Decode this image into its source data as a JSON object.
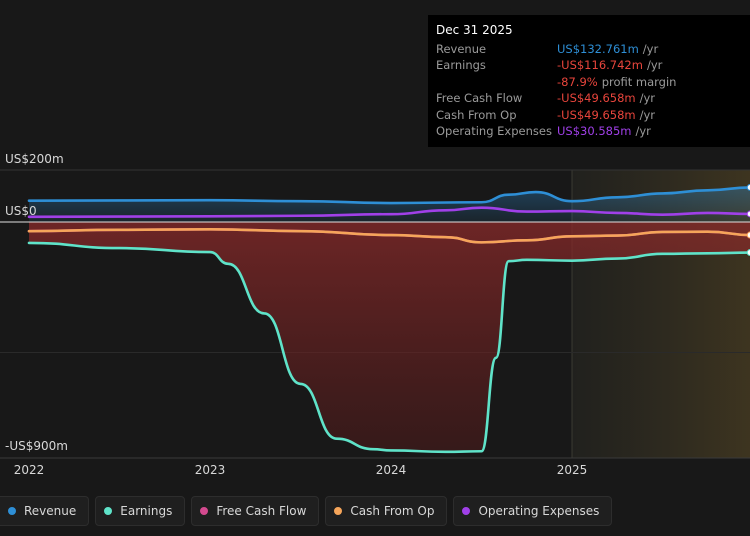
{
  "chart_data": {
    "type": "line",
    "y_axis_labels": {
      "top": "US$200m",
      "zero": "US$0",
      "bottom": "-US$900m"
    },
    "ylim": [
      -900,
      200
    ],
    "x_ticks": [
      "2022",
      "2023",
      "2024",
      "2025"
    ],
    "forecast_from": 2025.0,
    "series": [
      {
        "name": "Revenue",
        "color": "#2e8fd6",
        "fill": true,
        "x": [
          2022.0,
          2022.5,
          2023.0,
          2023.5,
          2024.0,
          2024.5,
          2024.65,
          2024.8,
          2025.0,
          2025.25,
          2025.5,
          2025.75,
          2025.99
        ],
        "y": [
          82,
          83,
          84,
          80,
          73,
          76,
          105,
          115,
          80,
          95,
          110,
          122,
          133
        ]
      },
      {
        "name": "Earnings",
        "color": "#5fe3c9",
        "fill": true,
        "x": [
          2022.0,
          2022.5,
          2023.0,
          2023.1,
          2023.3,
          2023.5,
          2023.7,
          2023.9,
          2024.0,
          2024.3,
          2024.5,
          2024.58,
          2024.65,
          2024.75,
          2025.0,
          2025.25,
          2025.5,
          2025.75,
          2025.99
        ],
        "y": [
          -80,
          -100,
          -115,
          -160,
          -350,
          -620,
          -830,
          -870,
          -875,
          -880,
          -878,
          -520,
          -150,
          -145,
          -148,
          -140,
          -122,
          -120,
          -117
        ]
      },
      {
        "name": "Free Cash Flow",
        "color": "#d44a8f",
        "fill": false,
        "x": [
          2022.0,
          2022.5,
          2023.0,
          2023.5,
          2024.0,
          2024.3,
          2024.5,
          2024.75,
          2025.0,
          2025.25,
          2025.5,
          2025.75,
          2025.99
        ],
        "y": [
          -35,
          -30,
          -28,
          -35,
          -50,
          -58,
          -78,
          -70,
          -55,
          -52,
          -38,
          -37,
          -50
        ]
      },
      {
        "name": "Cash From Op",
        "color": "#f5a55a",
        "fill": false,
        "x": [
          2022.0,
          2022.5,
          2023.0,
          2023.5,
          2024.0,
          2024.3,
          2024.5,
          2024.75,
          2025.0,
          2025.25,
          2025.5,
          2025.75,
          2025.99
        ],
        "y": [
          -35,
          -30,
          -28,
          -35,
          -50,
          -58,
          -78,
          -70,
          -55,
          -52,
          -38,
          -37,
          -50
        ]
      },
      {
        "name": "Operating Expenses",
        "color": "#a040e8",
        "fill": false,
        "x": [
          2022.0,
          2022.5,
          2023.0,
          2023.5,
          2024.0,
          2024.3,
          2024.5,
          2024.75,
          2025.0,
          2025.25,
          2025.5,
          2025.75,
          2025.99
        ],
        "y": [
          20,
          21,
          22,
          24,
          30,
          45,
          55,
          40,
          42,
          35,
          28,
          35,
          31
        ]
      }
    ]
  },
  "tooltip": {
    "date": "Dec 31 2025",
    "rows": [
      {
        "label": "Revenue",
        "value": "US$132.761m",
        "unit": "/yr",
        "color": "#2e8fd6"
      },
      {
        "label": "Earnings",
        "value": "-US$116.742m",
        "unit": "/yr",
        "color": "#e8453c"
      },
      {
        "label": "",
        "value": "-87.9%",
        "unit": "profit margin",
        "color": "#e8453c"
      },
      {
        "label": "Free Cash Flow",
        "value": "-US$49.658m",
        "unit": "/yr",
        "color": "#e8453c"
      },
      {
        "label": "Cash From Op",
        "value": "-US$49.658m",
        "unit": "/yr",
        "color": "#e8453c"
      },
      {
        "label": "Operating Expenses",
        "value": "US$30.585m",
        "unit": "/yr",
        "color": "#a040e8"
      }
    ]
  },
  "legend": [
    {
      "label": "Revenue",
      "color": "#2e8fd6"
    },
    {
      "label": "Earnings",
      "color": "#5fe3c9"
    },
    {
      "label": "Free Cash Flow",
      "color": "#d44a8f"
    },
    {
      "label": "Cash From Op",
      "color": "#f5a55a"
    },
    {
      "label": "Operating Expenses",
      "color": "#a040e8"
    }
  ]
}
